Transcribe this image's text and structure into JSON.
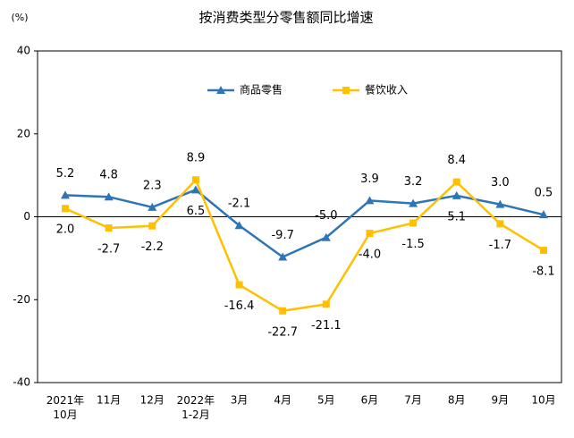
{
  "chart_data": {
    "type": "line",
    "title": "按消费类型分零售额同比增速",
    "y_unit": "(%)",
    "categories": [
      "2021年\n10月",
      "11月",
      "12月",
      "2022年\n1-2月",
      "3月",
      "4月",
      "5月",
      "6月",
      "7月",
      "8月",
      "9月",
      "10月"
    ],
    "series": [
      {
        "name": "商品零售",
        "color": "#2e75b6",
        "marker": "triangle",
        "values": [
          5.2,
          4.8,
          2.3,
          6.5,
          -2.1,
          -9.7,
          -5.0,
          3.9,
          3.2,
          5.1,
          3.0,
          0.5
        ],
        "value_labels": [
          "5.2",
          "4.8",
          "2.3",
          "6.5",
          "-2.1",
          "-9.7",
          "-5.0",
          "3.9",
          "3.2",
          "5.1",
          "3.0",
          "0.5"
        ]
      },
      {
        "name": "餐饮收入",
        "color": "#ffc000",
        "marker": "square",
        "values": [
          2.0,
          -2.7,
          -2.2,
          8.9,
          -16.4,
          -22.7,
          -21.1,
          -4.0,
          -1.5,
          8.4,
          -1.7,
          -8.1
        ],
        "value_labels": [
          "2.0",
          "-2.7",
          "-2.2",
          "8.9",
          "-16.4",
          "-22.7",
          "-21.1",
          "-4.0",
          "-1.5",
          "8.4",
          "-1.7",
          "-8.1"
        ]
      }
    ],
    "ylim": [
      -40,
      40
    ],
    "yticks": [
      -40,
      -20,
      0,
      20,
      40
    ],
    "legend": "top"
  }
}
